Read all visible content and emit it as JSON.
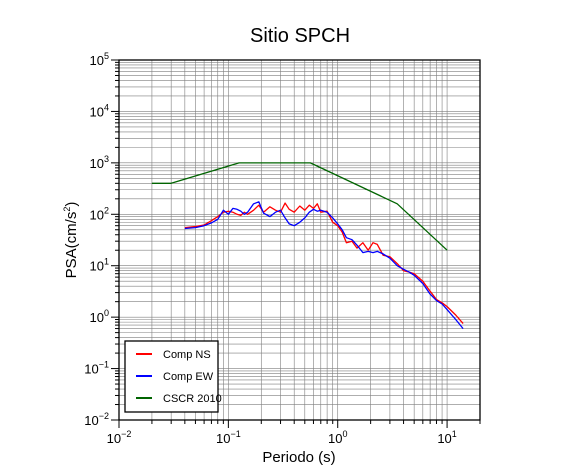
{
  "chart_data": {
    "type": "line",
    "title": "Sitio SPCH",
    "xlabel": "Periodo (s)",
    "ylabel": {
      "prefix": "PSA(cm/s",
      "sup": "2",
      "suffix": ")"
    },
    "xscale": "log",
    "yscale": "log",
    "xlim": [
      0.01,
      20
    ],
    "ylim": [
      0.01,
      100000
    ],
    "grid": true,
    "legend_position": "bottom-left",
    "x_ticks": [
      {
        "base": "10",
        "exp": "−2",
        "value": 0.01
      },
      {
        "base": "10",
        "exp": "−1",
        "value": 0.1
      },
      {
        "base": "10",
        "exp": "0",
        "value": 1
      },
      {
        "base": "10",
        "exp": "1",
        "value": 10
      }
    ],
    "y_ticks": [
      {
        "base": "10",
        "exp": "−2",
        "value": 0.01
      },
      {
        "base": "10",
        "exp": "−1",
        "value": 0.1
      },
      {
        "base": "10",
        "exp": "0",
        "value": 1
      },
      {
        "base": "10",
        "exp": "1",
        "value": 10
      },
      {
        "base": "10",
        "exp": "2",
        "value": 100
      },
      {
        "base": "10",
        "exp": "3",
        "value": 1000
      },
      {
        "base": "10",
        "exp": "4",
        "value": 10000
      },
      {
        "base": "10",
        "exp": "5",
        "value": 100000
      }
    ],
    "series": [
      {
        "name": "Comp NS",
        "color": "#ff0000",
        "x": [
          0.04,
          0.05,
          0.06,
          0.07,
          0.08,
          0.09,
          0.1,
          0.11,
          0.12,
          0.13,
          0.14,
          0.15,
          0.17,
          0.19,
          0.21,
          0.24,
          0.27,
          0.3,
          0.33,
          0.36,
          0.4,
          0.45,
          0.5,
          0.55,
          0.6,
          0.65,
          0.7,
          0.8,
          0.9,
          1.0,
          1.1,
          1.2,
          1.35,
          1.5,
          1.7,
          1.9,
          2.1,
          2.3,
          2.6,
          3.0,
          3.5,
          4.0,
          4.5,
          5.0,
          6.0,
          7.0,
          8.0,
          9.0,
          10.0,
          12.0,
          14.0
        ],
        "y": [
          55,
          58,
          62,
          75,
          90,
          110,
          115,
          110,
          100,
          95,
          110,
          100,
          120,
          150,
          110,
          140,
          120,
          110,
          165,
          125,
          110,
          145,
          120,
          150,
          130,
          160,
          110,
          115,
          70,
          60,
          45,
          28,
          30,
          22,
          28,
          20,
          28,
          26,
          16,
          15,
          11,
          8,
          7.5,
          7,
          5,
          3.2,
          2.2,
          1.9,
          1.6,
          1.1,
          0.75
        ]
      },
      {
        "name": "Comp EW",
        "color": "#0000ff",
        "x": [
          0.04,
          0.05,
          0.06,
          0.07,
          0.08,
          0.09,
          0.1,
          0.11,
          0.12,
          0.13,
          0.14,
          0.15,
          0.17,
          0.19,
          0.21,
          0.24,
          0.27,
          0.3,
          0.33,
          0.36,
          0.4,
          0.45,
          0.5,
          0.55,
          0.6,
          0.65,
          0.7,
          0.8,
          0.9,
          1.0,
          1.1,
          1.2,
          1.35,
          1.5,
          1.7,
          1.9,
          2.1,
          2.3,
          2.6,
          3.0,
          3.5,
          4.0,
          4.5,
          5.0,
          6.0,
          7.0,
          8.0,
          9.0,
          10.0,
          12.0,
          14.0
        ],
        "y": [
          53,
          55,
          60,
          68,
          80,
          120,
          100,
          130,
          125,
          115,
          100,
          110,
          160,
          175,
          105,
          90,
          110,
          120,
          85,
          65,
          60,
          70,
          85,
          110,
          125,
          115,
          120,
          110,
          85,
          65,
          50,
          35,
          32,
          25,
          18,
          19,
          18,
          19,
          17,
          14,
          10,
          8.5,
          7.5,
          6.5,
          4.5,
          2.8,
          2.1,
          1.8,
          1.4,
          0.9,
          0.6
        ]
      },
      {
        "name": "CSCR 2010",
        "color": "#006400",
        "x": [
          0.02,
          0.03,
          0.125,
          0.5625,
          3.5,
          10
        ],
        "y": [
          400,
          400,
          1000,
          1000,
          160,
          20
        ]
      }
    ]
  }
}
